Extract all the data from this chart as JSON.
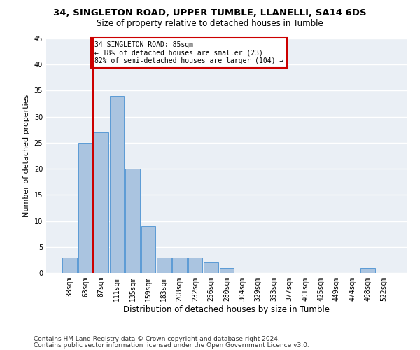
{
  "title1": "34, SINGLETON ROAD, UPPER TUMBLE, LLANELLI, SA14 6DS",
  "title2": "Size of property relative to detached houses in Tumble",
  "xlabel": "Distribution of detached houses by size in Tumble",
  "ylabel": "Number of detached properties",
  "bar_labels": [
    "38sqm",
    "63sqm",
    "87sqm",
    "111sqm",
    "135sqm",
    "159sqm",
    "183sqm",
    "208sqm",
    "232sqm",
    "256sqm",
    "280sqm",
    "304sqm",
    "329sqm",
    "353sqm",
    "377sqm",
    "401sqm",
    "425sqm",
    "449sqm",
    "474sqm",
    "498sqm",
    "522sqm"
  ],
  "bar_values": [
    3,
    25,
    27,
    34,
    20,
    9,
    3,
    3,
    3,
    2,
    1,
    0,
    0,
    0,
    0,
    0,
    0,
    0,
    0,
    1,
    0
  ],
  "bar_color": "#aac4e0",
  "bar_edgecolor": "#5b9bd5",
  "vline_color": "#cc0000",
  "annotation_text": "34 SINGLETON ROAD: 85sqm\n← 18% of detached houses are smaller (23)\n82% of semi-detached houses are larger (104) →",
  "annotation_box_edgecolor": "#cc0000",
  "annotation_box_facecolor": "#ffffff",
  "ylim": [
    0,
    45
  ],
  "yticks": [
    0,
    5,
    10,
    15,
    20,
    25,
    30,
    35,
    40,
    45
  ],
  "footer1": "Contains HM Land Registry data © Crown copyright and database right 2024.",
  "footer2": "Contains public sector information licensed under the Open Government Licence v3.0.",
  "bg_color": "#eaeff5",
  "grid_color": "#ffffff",
  "title1_fontsize": 9.5,
  "title2_fontsize": 8.5,
  "xlabel_fontsize": 8.5,
  "ylabel_fontsize": 8,
  "tick_fontsize": 7,
  "footer_fontsize": 6.5
}
